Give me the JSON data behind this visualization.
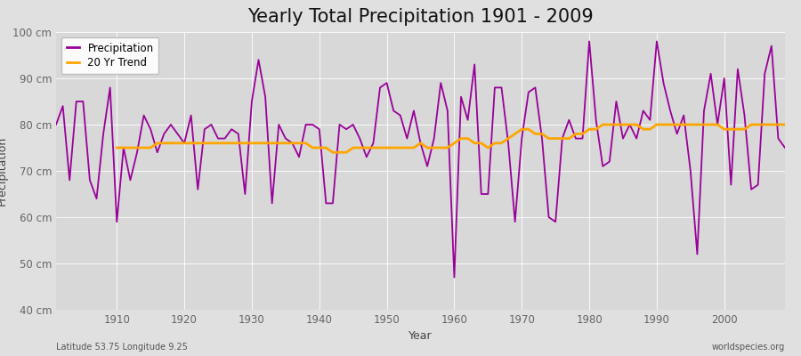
{
  "title": "Yearly Total Precipitation 1901 - 2009",
  "xlabel": "Year",
  "ylabel": "Precipitation",
  "lat_lon_label": "Latitude 53.75 Longitude 9.25",
  "source_label": "worldspecies.org",
  "years": [
    1901,
    1902,
    1903,
    1904,
    1905,
    1906,
    1907,
    1908,
    1909,
    1910,
    1911,
    1912,
    1913,
    1914,
    1915,
    1916,
    1917,
    1918,
    1919,
    1920,
    1921,
    1922,
    1923,
    1924,
    1925,
    1926,
    1927,
    1928,
    1929,
    1930,
    1931,
    1932,
    1933,
    1934,
    1935,
    1936,
    1937,
    1938,
    1939,
    1940,
    1941,
    1942,
    1943,
    1944,
    1945,
    1946,
    1947,
    1948,
    1949,
    1950,
    1951,
    1952,
    1953,
    1954,
    1955,
    1956,
    1957,
    1958,
    1959,
    1960,
    1961,
    1962,
    1963,
    1964,
    1965,
    1966,
    1967,
    1968,
    1969,
    1970,
    1971,
    1972,
    1973,
    1974,
    1975,
    1976,
    1977,
    1978,
    1979,
    1980,
    1981,
    1982,
    1983,
    1984,
    1985,
    1986,
    1987,
    1988,
    1989,
    1990,
    1991,
    1992,
    1993,
    1994,
    1995,
    1996,
    1997,
    1998,
    1999,
    2000,
    2001,
    2002,
    2003,
    2004,
    2005,
    2006,
    2007,
    2008,
    2009
  ],
  "precip": [
    80,
    84,
    68,
    85,
    85,
    68,
    64,
    78,
    88,
    59,
    75,
    68,
    74,
    82,
    79,
    74,
    78,
    80,
    78,
    76,
    82,
    66,
    79,
    80,
    77,
    77,
    79,
    78,
    65,
    85,
    94,
    86,
    63,
    80,
    77,
    76,
    73,
    80,
    80,
    79,
    63,
    63,
    80,
    79,
    80,
    77,
    73,
    76,
    88,
    89,
    83,
    82,
    77,
    83,
    76,
    71,
    77,
    89,
    83,
    47,
    86,
    81,
    93,
    65,
    65,
    88,
    88,
    76,
    59,
    77,
    87,
    88,
    77,
    60,
    59,
    77,
    81,
    77,
    77,
    98,
    81,
    71,
    72,
    85,
    77,
    80,
    77,
    83,
    81,
    98,
    89,
    83,
    78,
    82,
    70,
    52,
    83,
    91,
    80,
    90,
    67,
    92,
    82,
    66,
    67,
    91,
    97,
    77,
    75
  ],
  "trend_years": [
    1910,
    1911,
    1912,
    1913,
    1914,
    1915,
    1916,
    1917,
    1918,
    1919,
    1920,
    1921,
    1922,
    1923,
    1924,
    1925,
    1926,
    1927,
    1928,
    1929,
    1930,
    1931,
    1932,
    1933,
    1934,
    1935,
    1936,
    1937,
    1938,
    1939,
    1940,
    1941,
    1942,
    1943,
    1944,
    1945,
    1946,
    1947,
    1948,
    1949,
    1950,
    1951,
    1952,
    1953,
    1954,
    1955,
    1956,
    1957,
    1958,
    1959,
    1960,
    1961,
    1962,
    1963,
    1964,
    1965,
    1966,
    1967,
    1968,
    1969,
    1970,
    1971,
    1972,
    1973,
    1974,
    1975,
    1976,
    1977,
    1978,
    1979,
    1980,
    1981,
    1982,
    1983,
    1984,
    1985,
    1986,
    1987,
    1988,
    1989,
    1990,
    1991,
    1992,
    1993,
    1994,
    1995,
    1996,
    1997,
    1998,
    1999,
    2000,
    2001,
    2002,
    2003,
    2004,
    2005,
    2006,
    2007,
    2008,
    2009
  ],
  "trend": [
    75,
    75,
    75,
    75,
    75,
    75,
    76,
    76,
    76,
    76,
    76,
    76,
    76,
    76,
    76,
    76,
    76,
    76,
    76,
    76,
    76,
    76,
    76,
    76,
    76,
    76,
    76,
    76,
    76,
    75,
    75,
    75,
    74,
    74,
    74,
    75,
    75,
    75,
    75,
    75,
    75,
    75,
    75,
    75,
    75,
    76,
    75,
    75,
    75,
    75,
    76,
    77,
    77,
    76,
    76,
    75,
    76,
    76,
    77,
    78,
    79,
    79,
    78,
    78,
    77,
    77,
    77,
    77,
    78,
    78,
    79,
    79,
    80,
    80,
    80,
    80,
    80,
    80,
    79,
    79,
    80,
    80,
    80,
    80,
    80,
    80,
    80,
    80,
    80,
    80,
    79,
    79,
    79,
    79,
    80,
    80,
    80,
    80,
    80,
    80
  ],
  "precip_color": "#990099",
  "trend_color": "#FFA500",
  "bg_color": "#E0E0E0",
  "plot_bg_color": "#D8D8D8",
  "ylim": [
    40,
    100
  ],
  "xlim": [
    1901,
    2009
  ],
  "yticks": [
    40,
    50,
    60,
    70,
    80,
    90,
    100
  ],
  "ytick_labels": [
    "40 cm",
    "50 cm",
    "60 cm",
    "70 cm",
    "80 cm",
    "90 cm",
    "100 cm"
  ],
  "xticks": [
    1910,
    1920,
    1930,
    1940,
    1950,
    1960,
    1970,
    1980,
    1990,
    2000
  ],
  "title_fontsize": 15,
  "axis_label_fontsize": 9,
  "tick_fontsize": 8.5,
  "legend_fontsize": 8.5,
  "line_width": 1.3,
  "grid_color": "#FFFFFF",
  "grid_linewidth": 0.6,
  "figwidth": 9.0,
  "figheight": 4.0,
  "dpi": 100
}
